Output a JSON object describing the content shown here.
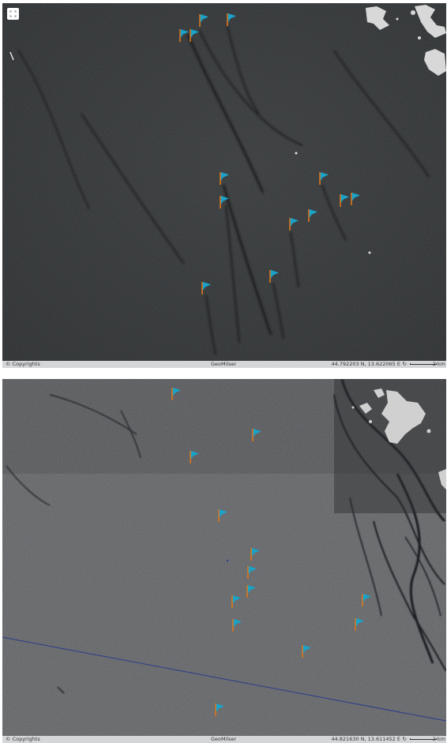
{
  "top_panel": {
    "copyright": "© Copyrights",
    "logo": "GeoMilser",
    "coords": "44.792203 N, 13.622065 E",
    "scale_label": "2 km",
    "refresh_icon": "refresh-icon",
    "fullscreen_icon": "fullscreen-icon",
    "flag_count": 14
  },
  "bottom_panel": {
    "copyright": "© Copyrights",
    "logo": "GeoMilser",
    "coords": "44.821630 N, 13.611452 E",
    "scale_label": "2 km",
    "refresh_icon": "refresh-icon",
    "flag_count": 14
  },
  "colors": {
    "flag": "#1aa3c9",
    "pole": "#e0761a",
    "sea_top": "#2b2e30",
    "sea_bottom": "#55575a",
    "land": "#d6d6d6",
    "track_line": "#2a3c8c"
  }
}
